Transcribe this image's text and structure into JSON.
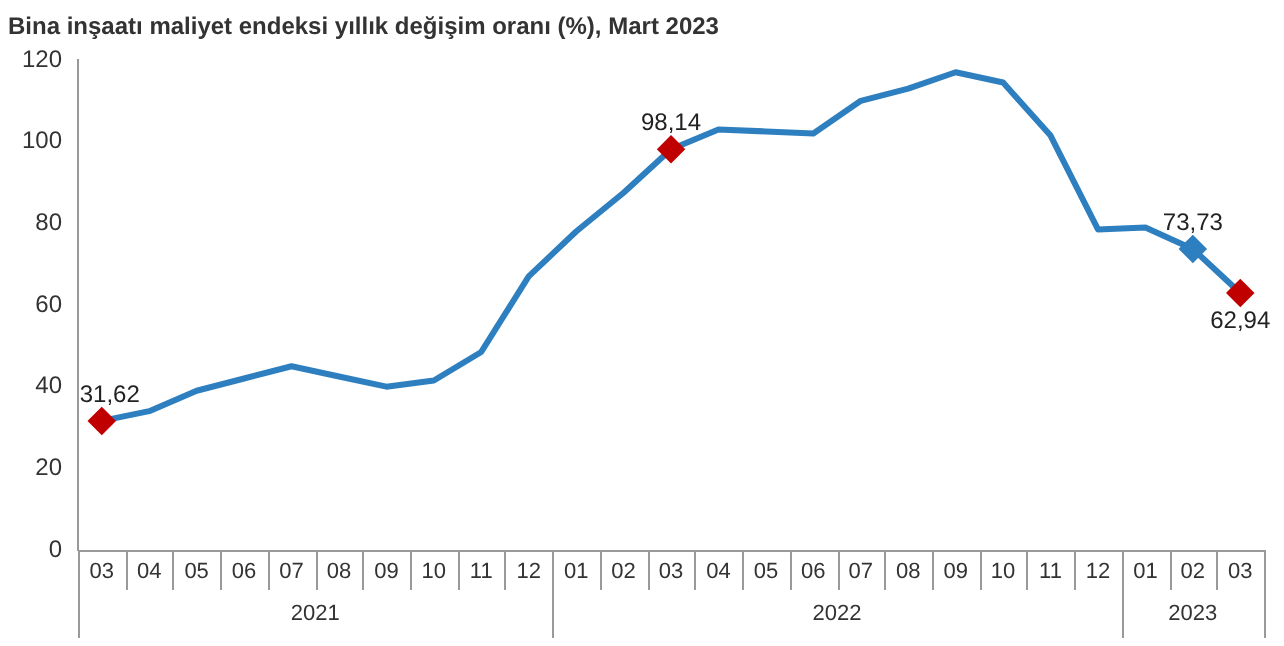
{
  "chart_data": {
    "type": "line",
    "title": "Bina inşaatı maliyet endeksi yıllık değişim oranı (%), Mart 2023",
    "categories": [
      "03",
      "04",
      "05",
      "06",
      "07",
      "08",
      "09",
      "10",
      "11",
      "12",
      "01",
      "02",
      "03",
      "04",
      "05",
      "06",
      "07",
      "08",
      "09",
      "10",
      "11",
      "12",
      "01",
      "02",
      "03"
    ],
    "annotations": [
      "2021",
      "2022",
      "2023"
    ],
    "series": [
      {
        "color": "#2e7fbf",
        "values": [
          31.62,
          34,
          39,
          42,
          45,
          42.5,
          40,
          41.5,
          48.5,
          67,
          78,
          87.5,
          98.14,
          103,
          102.5,
          102,
          110,
          113,
          117,
          114.5,
          101.5,
          78.5,
          79,
          73.73,
          62.94
        ],
        "value_labels": [
          "31,62",
          null,
          null,
          null,
          null,
          null,
          null,
          null,
          null,
          null,
          null,
          null,
          "98,14",
          null,
          null,
          null,
          null,
          null,
          null,
          null,
          null,
          null,
          null,
          "73,73",
          "62,94"
        ],
        "colors": [
          "#c00000",
          "#2e7fbf",
          "#2e7fbf",
          "#2e7fbf",
          "#2e7fbf",
          "#2e7fbf",
          "#2e7fbf",
          "#2e7fbf",
          "#2e7fbf",
          "#2e7fbf",
          "#2e7fbf",
          "#2e7fbf",
          "#c00000",
          "#2e7fbf",
          "#2e7fbf",
          "#2e7fbf",
          "#2e7fbf",
          "#2e7fbf",
          "#2e7fbf",
          "#2e7fbf",
          "#2e7fbf",
          "#2e7fbf",
          "#2e7fbf",
          "#2e7fbf",
          "#c00000"
        ]
      }
    ],
    "ylim": [
      0,
      120
    ],
    "yticks": [
      0,
      20,
      40,
      60,
      80,
      100,
      120
    ],
    "grid": false,
    "legend": false,
    "line_style": "solid"
  }
}
